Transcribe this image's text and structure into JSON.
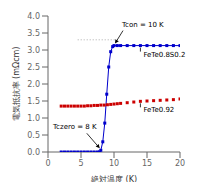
{
  "chart_data": {
    "type": "line",
    "xlabel": "絶対温度 (K)",
    "ylabel": "電気抵抗率 (mΩcm)",
    "xlim": [
      0,
      20
    ],
    "ylim": [
      0,
      4
    ],
    "xticks": [
      0,
      5,
      10,
      15,
      20
    ],
    "yticks": [
      {
        "value": 0,
        "label": "0.0"
      },
      {
        "value": 0.5,
        "label": "0.5"
      },
      {
        "value": 1,
        "label": "1.0"
      },
      {
        "value": 1.5,
        "label": "1.5"
      },
      {
        "value": 2,
        "label": "2.0"
      },
      {
        "value": 2.5,
        "label": "2.5"
      },
      {
        "value": 3,
        "label": "3.0"
      },
      {
        "value": 3.5,
        "label": "3.5"
      },
      {
        "value": 4,
        "label": "4.0"
      }
    ],
    "series": [
      {
        "name": "FeTe0.8S0.2",
        "color": "#0000cc",
        "marker": "square",
        "line_style": "solid",
        "x": [
          2,
          2.5,
          3,
          3.5,
          4,
          4.5,
          5,
          5.5,
          6,
          6.5,
          7,
          7.5,
          7.8,
          8.0,
          8.3,
          8.6,
          8.9,
          9.2,
          9.5,
          9.8,
          10.0,
          10.5,
          11,
          12,
          13,
          14,
          15,
          16,
          17,
          18,
          19,
          20
        ],
        "values": [
          0.0,
          0.0,
          0.0,
          0.0,
          0.0,
          0.0,
          0.0,
          0.0,
          0.0,
          0.0,
          0.0,
          0.0,
          0.0,
          0.05,
          0.3,
          0.85,
          1.7,
          2.5,
          2.95,
          3.1,
          3.13,
          3.13,
          3.13,
          3.13,
          3.13,
          3.13,
          3.13,
          3.13,
          3.13,
          3.13,
          3.13,
          3.13
        ]
      },
      {
        "name": "FeTe0.92",
        "color": "#cc0000",
        "marker": "square",
        "line_style": "none",
        "x": [
          2,
          2.5,
          3,
          3.5,
          4,
          4.5,
          5,
          5.5,
          6,
          6.5,
          7,
          7.5,
          8,
          8.5,
          9,
          9.5,
          10,
          10.5,
          11,
          12,
          13,
          14,
          15,
          16,
          17,
          18,
          19,
          20
        ],
        "values": [
          1.35,
          1.35,
          1.35,
          1.35,
          1.35,
          1.35,
          1.35,
          1.35,
          1.36,
          1.36,
          1.37,
          1.37,
          1.38,
          1.38,
          1.39,
          1.4,
          1.41,
          1.42,
          1.43,
          1.45,
          1.47,
          1.49,
          1.5,
          1.51,
          1.52,
          1.53,
          1.54,
          1.56
        ]
      },
      {
        "color": "#aaaaaa",
        "marker": "none",
        "line_style": "dotted",
        "x": [
          4.5,
          5.5,
          6.5,
          7.5,
          8.5,
          9.5,
          10.2
        ],
        "values": [
          3.3,
          3.3,
          3.3,
          3.3,
          3.3,
          3.3,
          3.3
        ]
      }
    ],
    "annotations": [
      {
        "text": "Tcon = 10 K",
        "x": 10.0,
        "y": 3.13
      },
      {
        "text": "Tczero = 8 K",
        "x": 8.0,
        "y": 0.05
      }
    ]
  }
}
